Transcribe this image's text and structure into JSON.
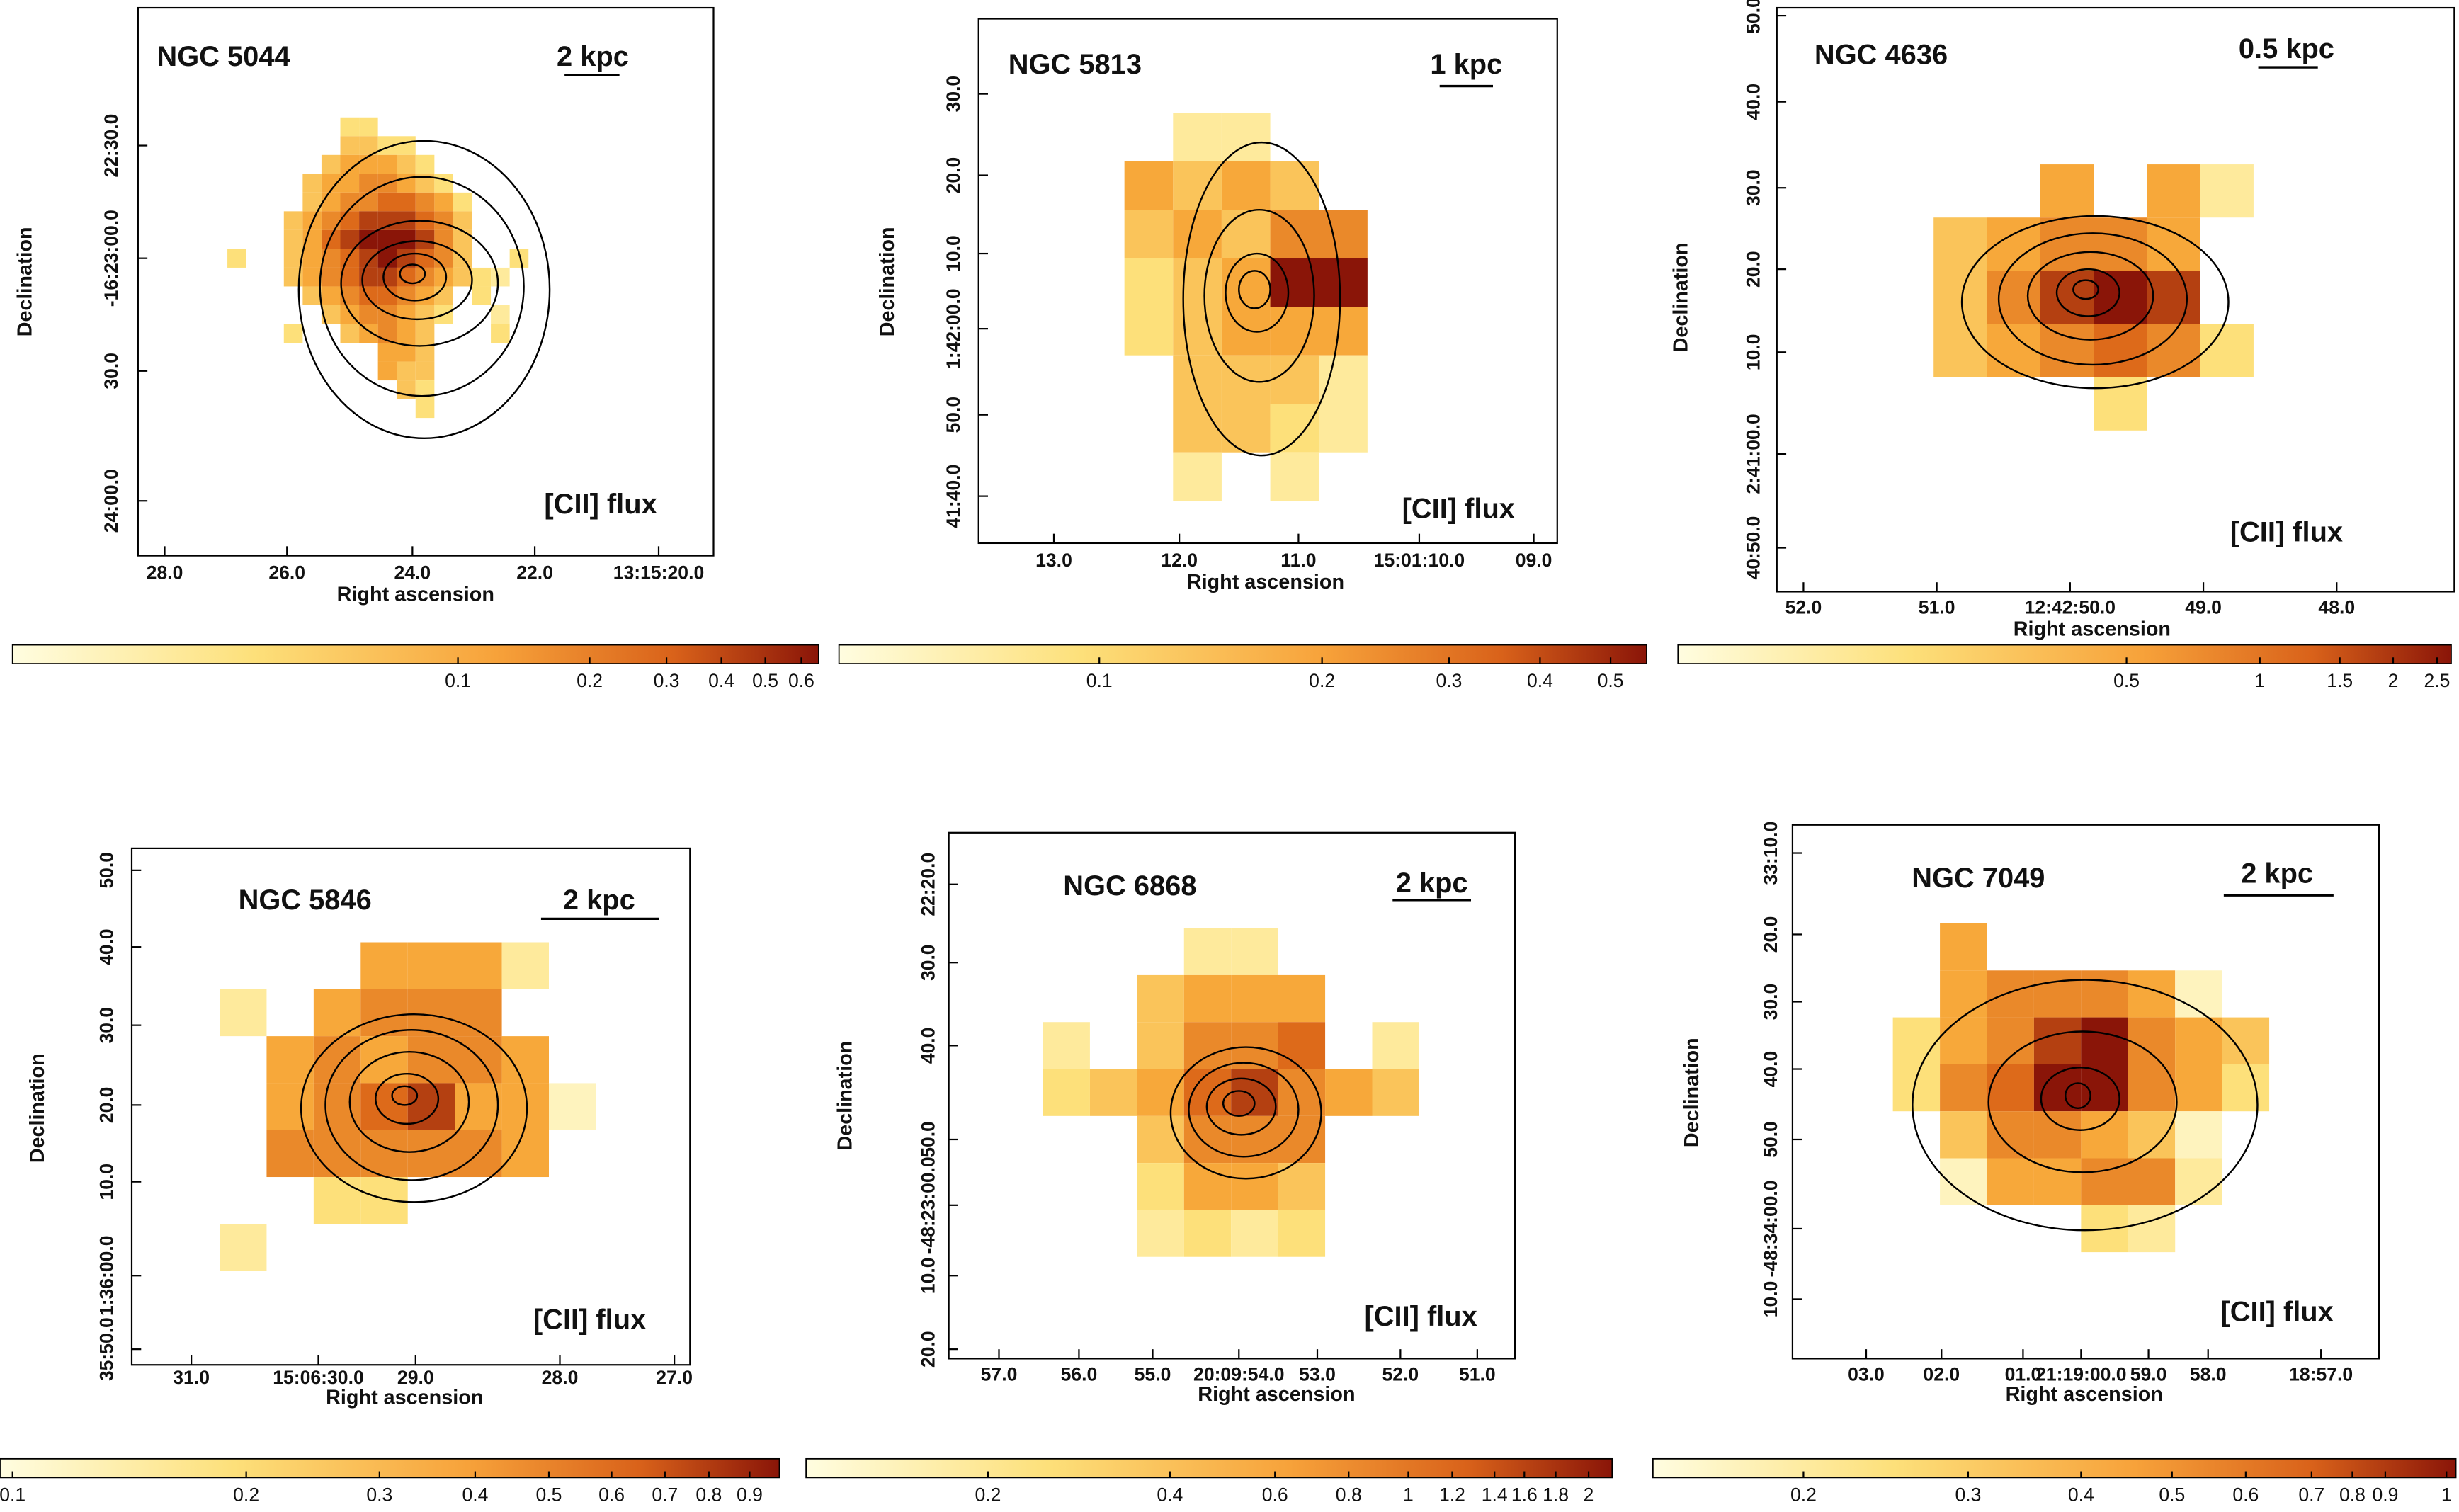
{
  "panels": [
    {
      "name": "NGC 5044",
      "scale": "2 kpc",
      "label": "[CII] flux",
      "xlabel": "Right ascension",
      "ylabel": "Declination",
      "xticks": [
        "28.0",
        "26.0",
        "24.0",
        "22.0",
        "13:15:20.0"
      ],
      "yticks": [
        "22:30.0",
        "-16:23:00.0",
        "30.0",
        "24:00.0"
      ],
      "colorbar": [
        "0.1",
        "0.2",
        "0.3",
        "0.4",
        "0.5",
        "0.6"
      ]
    },
    {
      "name": "NGC 5813",
      "scale": "1 kpc",
      "label": "[CII] flux",
      "xlabel": "Right ascension",
      "ylabel": "Declination",
      "xticks": [
        "13.0",
        "12.0",
        "11.0",
        "15:01:10.0",
        "09.0"
      ],
      "yticks": [
        "30.0",
        "20.0",
        "10.0",
        "1:42:00.0",
        "50.0",
        "41:40.0"
      ],
      "colorbar": [
        "0.1",
        "0.2",
        "0.3",
        "0.4",
        "0.5"
      ]
    },
    {
      "name": "NGC 4636",
      "scale": "0.5 kpc",
      "label": "[CII] flux",
      "xlabel": "Right ascension",
      "ylabel": "Declination",
      "xticks": [
        "52.0",
        "51.0",
        "12:42:50.0",
        "49.0",
        "48.0"
      ],
      "yticks": [
        "50.0",
        "40.0",
        "30.0",
        "20.0",
        "10.0",
        "2:41:00.0",
        "40:50.0"
      ],
      "colorbar": [
        "0.5",
        "1",
        "1.5",
        "2",
        "2.5"
      ]
    },
    {
      "name": "NGC 5846",
      "scale": "2 kpc",
      "label": "[CII] flux",
      "xlabel": "Right ascension",
      "ylabel": "Declination",
      "xticks": [
        "31.0",
        "15:06:30.0",
        "29.0",
        "28.0",
        "27.0"
      ],
      "yticks": [
        "50.0",
        "40.0",
        "30.0",
        "20.0",
        "10.0",
        "1:36:00.0",
        "35:50.0"
      ],
      "colorbar": [
        "0.1",
        "0.2",
        "0.3",
        "0.4",
        "0.5",
        "0.6",
        "0.7",
        "0.8",
        "0.9"
      ]
    },
    {
      "name": "NGC 6868",
      "scale": "2 kpc",
      "label": "[CII] flux",
      "xlabel": "Right ascension",
      "ylabel": "Declination",
      "xticks": [
        "57.0",
        "56.0",
        "55.0",
        "20:09:54.0",
        "53.0",
        "52.0",
        "51.0"
      ],
      "yticks": [
        "22:20.0",
        "30.0",
        "40.0",
        "50.0",
        "-48:23:00.0",
        "10.0",
        "20.0"
      ],
      "colorbar": [
        "0.2",
        "0.4",
        "0.6",
        "0.8",
        "1",
        "1.2",
        "1.4",
        "1.6",
        "1.8",
        "2"
      ]
    },
    {
      "name": "NGC 7049",
      "scale": "2 kpc",
      "label": "[CII] flux",
      "xlabel": "Right ascension",
      "ylabel": "Declination",
      "xticks": [
        "03.0",
        "02.0",
        "01.0",
        "21:19:00.0",
        "59.0",
        "58.0",
        "18:57.0"
      ],
      "yticks": [
        "33:10.0",
        "20.0",
        "30.0",
        "40.0",
        "50.0",
        "-48:34:00.0",
        "10.0"
      ],
      "colorbar": [
        "0.2",
        "0.3",
        "0.4",
        "0.5",
        "0.6",
        "0.7",
        "0.8",
        "0.9",
        "1"
      ]
    }
  ]
}
